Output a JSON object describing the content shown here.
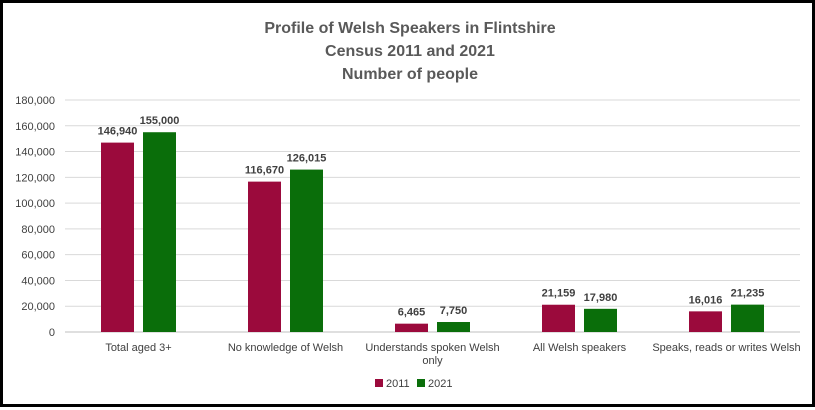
{
  "chart_data": {
    "type": "bar",
    "title_lines": [
      "Profile of Welsh Speakers in Flintshire",
      "Census 2011 and 2021",
      "Number of people"
    ],
    "categories": [
      [
        "Total aged 3+"
      ],
      [
        "No knowledge of Welsh"
      ],
      [
        "Understands spoken Welsh",
        "only"
      ],
      [
        "All Welsh speakers"
      ],
      [
        "Speaks, reads or writes Welsh"
      ]
    ],
    "series": [
      {
        "name": "2011",
        "color": "#9B0A3C",
        "values": [
          146940,
          116670,
          6465,
          21159,
          16016
        ],
        "labels": [
          "146,940",
          "116,670",
          "6,465",
          "21,159",
          "16,016"
        ]
      },
      {
        "name": "2021",
        "color": "#0A6E0A",
        "values": [
          155000,
          126015,
          7750,
          17980,
          21235
        ],
        "labels": [
          "155,000",
          "126,015",
          "7,750",
          "17,980",
          "21,235"
        ]
      }
    ],
    "y_ticks": [
      "0",
      "20,000",
      "40,000",
      "60,000",
      "80,000",
      "100,000",
      "120,000",
      "140,000",
      "160,000",
      "180,000"
    ],
    "ylim": [
      0,
      180000
    ],
    "ytick_step": 20000,
    "grid": true,
    "legend_position": "bottom"
  }
}
